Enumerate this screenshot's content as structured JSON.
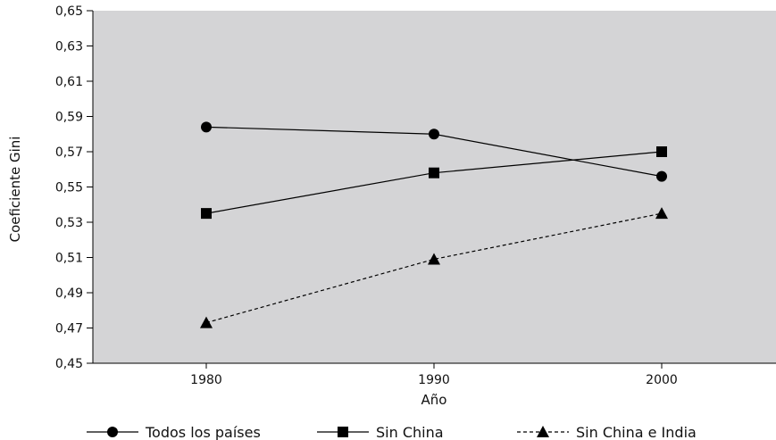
{
  "chart_data": {
    "type": "line",
    "xlabel": "Año",
    "ylabel": "Coeficiente Gini",
    "categories": [
      "1980",
      "1990",
      "2000"
    ],
    "ylim": [
      0.45,
      0.65
    ],
    "yticks": [
      "0,45",
      "0,47",
      "0,49",
      "0,51",
      "0,53",
      "0,55",
      "0,57",
      "0,59",
      "0,61",
      "0,63",
      "0,65"
    ],
    "grid": false,
    "legend_position": "bottom",
    "background": "#d4d4d6",
    "series": [
      {
        "name": "Todos los países",
        "values": [
          0.584,
          0.58,
          0.556
        ],
        "marker": "circle",
        "line": "solid",
        "color": "#000000"
      },
      {
        "name": "Sin China",
        "values": [
          0.535,
          0.558,
          0.57
        ],
        "marker": "square",
        "line": "solid",
        "color": "#000000"
      },
      {
        "name": "Sin China e India",
        "values": [
          0.473,
          0.509,
          0.535
        ],
        "marker": "triangle",
        "line": "dashed",
        "color": "#000000"
      }
    ]
  }
}
